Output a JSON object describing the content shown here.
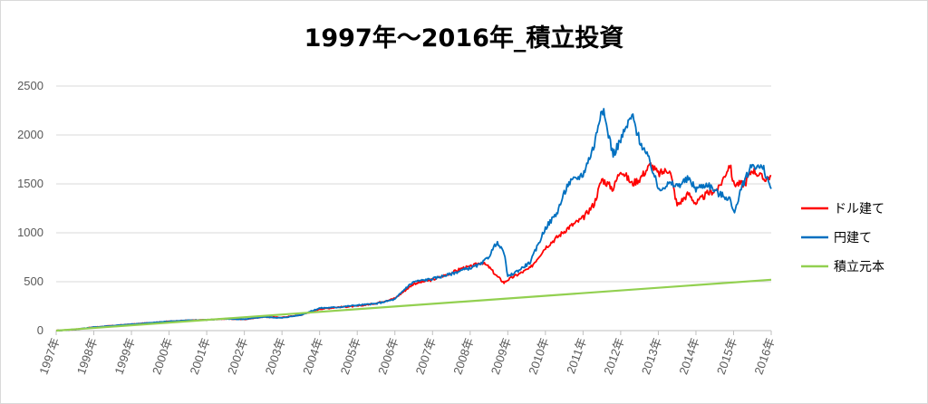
{
  "chart_data": {
    "type": "line",
    "title": "1997年～2016年_積立投資",
    "xlabel": "",
    "ylabel": "",
    "ylim": [
      0,
      2500
    ],
    "y_ticks": [
      0,
      500,
      1000,
      1500,
      2000,
      2500
    ],
    "categories": [
      "1997年",
      "1998年",
      "1999年",
      "2000年",
      "2001年",
      "2002年",
      "2003年",
      "2004年",
      "2005年",
      "2006年",
      "2007年",
      "2008年",
      "2009年",
      "2010年",
      "2011年",
      "2012年",
      "2013年",
      "2014年",
      "2015年",
      "2016年"
    ],
    "grid": true,
    "legend_position": "right",
    "series": [
      {
        "name": "ドル建て",
        "color": "#ff0000",
        "x": [
          0,
          0.5,
          1,
          1.5,
          2,
          2.5,
          3,
          3.5,
          4,
          4.5,
          5,
          5.5,
          6,
          6.5,
          7,
          7.5,
          8,
          8.5,
          9,
          9.3,
          9.5,
          10,
          10.5,
          10.8,
          11,
          11.3,
          11.5,
          11.7,
          11.9,
          12,
          12.3,
          12.6,
          13,
          13.3,
          13.6,
          14,
          14.3,
          14.5,
          14.8,
          15,
          15.3,
          15.5,
          15.8,
          16,
          16.3,
          16.5,
          16.8,
          17,
          17.3,
          17.6,
          17.9,
          18,
          18.3,
          18.5,
          18.8,
          19
        ],
        "values": [
          0,
          12,
          35,
          50,
          65,
          80,
          95,
          105,
          110,
          120,
          115,
          140,
          135,
          160,
          220,
          240,
          250,
          280,
          330,
          420,
          480,
          520,
          590,
          640,
          650,
          700,
          650,
          560,
          490,
          520,
          580,
          640,
          850,
          950,
          1050,
          1150,
          1300,
          1550,
          1450,
          1650,
          1500,
          1550,
          1700,
          1600,
          1650,
          1280,
          1400,
          1300,
          1400,
          1450,
          1700,
          1500,
          1500,
          1650,
          1550,
          1580
        ]
      },
      {
        "name": "円建て",
        "color": "#0070c0",
        "x": [
          0,
          0.5,
          1,
          1.5,
          2,
          2.5,
          3,
          3.5,
          4,
          4.5,
          5,
          5.5,
          6,
          6.5,
          7,
          7.5,
          8,
          8.5,
          9,
          9.3,
          9.5,
          10,
          10.5,
          10.8,
          11,
          11.3,
          11.5,
          11.7,
          11.9,
          12,
          12.3,
          12.6,
          13,
          13.3,
          13.6,
          14,
          14.3,
          14.5,
          14.8,
          15,
          15.3,
          15.5,
          15.8,
          16,
          16.3,
          16.5,
          16.8,
          17,
          17.3,
          17.6,
          17.9,
          18,
          18.3,
          18.5,
          18.8,
          19
        ],
        "values": [
          0,
          12,
          35,
          50,
          65,
          80,
          95,
          105,
          110,
          120,
          115,
          140,
          130,
          160,
          230,
          240,
          260,
          275,
          320,
          440,
          500,
          530,
          580,
          620,
          640,
          680,
          760,
          900,
          800,
          550,
          620,
          700,
          1050,
          1200,
          1500,
          1600,
          1900,
          2300,
          1800,
          1950,
          2200,
          1950,
          1700,
          1450,
          1500,
          1480,
          1550,
          1450,
          1500,
          1400,
          1350,
          1200,
          1550,
          1700,
          1650,
          1450
        ]
      },
      {
        "name": "積立元本",
        "color": "#92d050",
        "x": [
          0,
          19
        ],
        "values": [
          0,
          520
        ]
      }
    ]
  }
}
